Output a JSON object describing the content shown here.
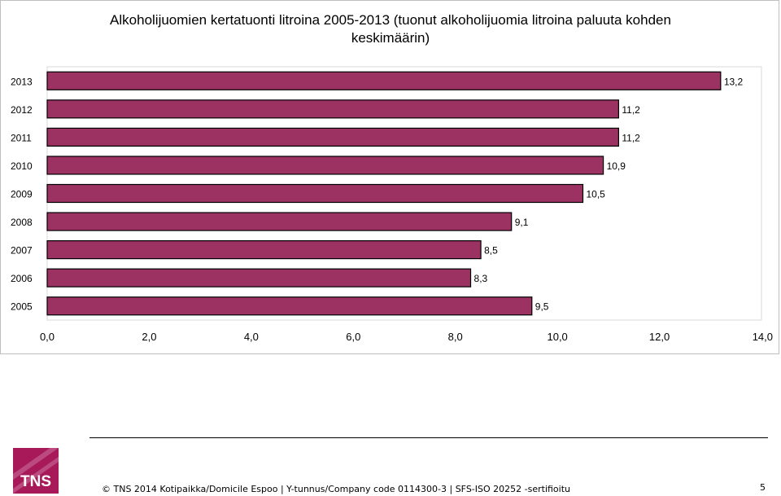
{
  "chart_data": {
    "type": "bar",
    "orientation": "horizontal",
    "title": "Alkoholijuomien kertatuonti litroina 2005-2013 (tuonut alkoholijuomia litroina paluuta kohden keskimäärin)",
    "title_line1": "Alkoholijuomien kertatuonti litroina 2005-2013 (tuonut alkoholijuomia litroina paluuta kohden",
    "title_line2": "keskimäärin)",
    "categories": [
      "2013",
      "2012",
      "2011",
      "2010",
      "2009",
      "2008",
      "2007",
      "2006",
      "2005"
    ],
    "values": [
      13.2,
      11.2,
      11.2,
      10.9,
      10.5,
      9.1,
      8.5,
      8.3,
      9.5
    ],
    "value_labels": [
      "13,2",
      "11,2",
      "11,2",
      "10,9",
      "10,5",
      "9,1",
      "8,5",
      "8,3",
      "9,5"
    ],
    "xlim": [
      0,
      14
    ],
    "x_ticks": [
      "0,0",
      "2,0",
      "4,0",
      "6,0",
      "8,0",
      "10,0",
      "12,0",
      "14,0"
    ],
    "xlabel": "",
    "ylabel": "",
    "grid": false,
    "bar_color": "#9c3262"
  },
  "footer": {
    "logo": "TNS",
    "copyright_icon": "copyright-symbol",
    "text": "© TNS 2014    Kotipaikka/Domicile Espoo | Y-tunnus/Company code 0114300-3 | SFS-ISO 20252 -sertifioitu",
    "page_number": "5"
  }
}
